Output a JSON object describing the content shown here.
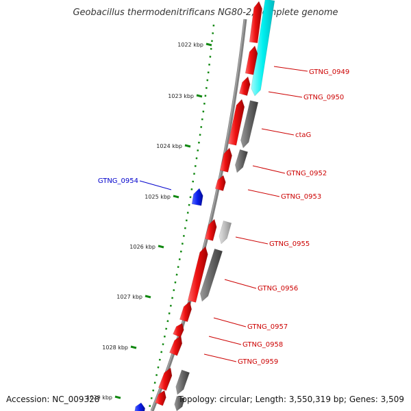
{
  "title": "Geobacillus thermodenitrificans NG80-2, complete genome",
  "colors": {
    "backbone": "#808080",
    "forward_gene": "#ee1111",
    "reverse_gene_dark": "#666666",
    "reverse_gene_light": "#bbbbbb",
    "reverse_gene_cyan": "#00f0f0",
    "blue_gene": "#0b20ee",
    "tick_marks": "#118811",
    "label_red": "#cc0000",
    "label_blue": "#0000cc"
  },
  "ruler": {
    "unit": "kbp",
    "ticks": [
      {
        "label": "1022 kbp"
      },
      {
        "label": "1023 kbp"
      },
      {
        "label": "1024 kbp"
      },
      {
        "label": "1025 kbp"
      },
      {
        "label": "1026 kbp"
      },
      {
        "label": "1027 kbp"
      },
      {
        "label": "1028 kbp"
      },
      {
        "label": "1029 kbp"
      }
    ]
  },
  "gene_labels": [
    {
      "name": "GTNG_0949",
      "color": "#cc0000"
    },
    {
      "name": "GTNG_0950",
      "color": "#cc0000"
    },
    {
      "name": "ctaG",
      "color": "#cc0000"
    },
    {
      "name": "GTNG_0952",
      "color": "#cc0000"
    },
    {
      "name": "GTNG_0953",
      "color": "#cc0000"
    },
    {
      "name": "GTNG_0954",
      "color": "#0000cc"
    },
    {
      "name": "GTNG_0955",
      "color": "#cc0000"
    },
    {
      "name": "GTNG_0956",
      "color": "#cc0000"
    },
    {
      "name": "GTNG_0957",
      "color": "#cc0000"
    },
    {
      "name": "GTNG_0958",
      "color": "#cc0000"
    },
    {
      "name": "GTNG_0959",
      "color": "#cc0000"
    }
  ],
  "footer": {
    "accession": "Accession: NC_009328",
    "topology": "Topology: circular; Length: 3,550,319 bp; Genes: 3,509"
  }
}
